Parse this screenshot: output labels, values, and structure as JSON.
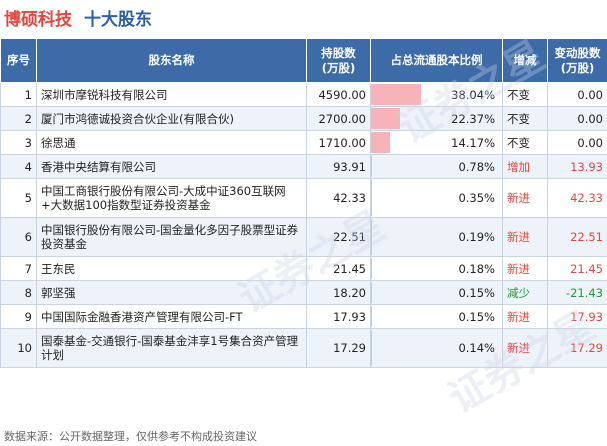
{
  "header": {
    "company": "博硕科技",
    "section": "十大股东"
  },
  "columns": {
    "rank": "序号",
    "name": "股东名称",
    "shares": "持股数\n(万股)",
    "ratio": "占总流通股本比例",
    "change": "增减",
    "delta": "变动股数\n(万股)"
  },
  "rows": [
    {
      "rank": "1",
      "name": "深圳市摩锐科技有限公司",
      "shares": "4590.00",
      "ratio": "38.04%",
      "ratio_value": 38.04,
      "change": "不变",
      "delta": "0.00",
      "trend": "none"
    },
    {
      "rank": "2",
      "name": "厦门市鸿德诚投资合伙企业(有限合伙)",
      "shares": "2700.00",
      "ratio": "22.37%",
      "ratio_value": 22.37,
      "change": "不变",
      "delta": "0.00",
      "trend": "none"
    },
    {
      "rank": "3",
      "name": "徐思通",
      "shares": "1710.00",
      "ratio": "14.17%",
      "ratio_value": 14.17,
      "change": "不变",
      "delta": "0.00",
      "trend": "none"
    },
    {
      "rank": "4",
      "name": "香港中央结算有限公司",
      "shares": "93.91",
      "ratio": "0.78%",
      "ratio_value": 0.78,
      "change": "增加",
      "delta": "13.93",
      "trend": "up"
    },
    {
      "rank": "5",
      "name": "中国工商银行股份有限公司-大成中证360互联网+大数据100指数型证券投资基金",
      "shares": "42.33",
      "ratio": "0.35%",
      "ratio_value": 0.35,
      "change": "新进",
      "delta": "42.33",
      "trend": "up"
    },
    {
      "rank": "6",
      "name": "中国银行股份有限公司-国金量化多因子股票型证券投资基金",
      "shares": "22.51",
      "ratio": "0.19%",
      "ratio_value": 0.19,
      "change": "新进",
      "delta": "22.51",
      "trend": "up"
    },
    {
      "rank": "7",
      "name": "王东民",
      "shares": "21.45",
      "ratio": "0.18%",
      "ratio_value": 0.18,
      "change": "新进",
      "delta": "21.45",
      "trend": "up"
    },
    {
      "rank": "8",
      "name": "郭坚强",
      "shares": "18.20",
      "ratio": "0.15%",
      "ratio_value": 0.15,
      "change": "减少",
      "delta": "-21.43",
      "trend": "down"
    },
    {
      "rank": "9",
      "name": "中国国际金融香港资产管理有限公司-FT",
      "shares": "17.93",
      "ratio": "0.15%",
      "ratio_value": 0.15,
      "change": "新进",
      "delta": "17.93",
      "trend": "up"
    },
    {
      "rank": "10",
      "name": "国泰基金-交通银行-国泰基金沣享1号集合资产管理计划",
      "shares": "17.29",
      "ratio": "0.14%",
      "ratio_value": 0.14,
      "change": "新进",
      "delta": "17.29",
      "trend": "up"
    }
  ],
  "footer": "数据来源：公开数据整理，仅供参考不构成投资建议",
  "watermark": "证券之星",
  "colors": {
    "header_bg": "#3d6ba8",
    "company_title": "#e5463c",
    "section_title": "#2b5fa8",
    "bar": "#f7b4b8",
    "up": "#e5463c",
    "down": "#1c9b38"
  }
}
